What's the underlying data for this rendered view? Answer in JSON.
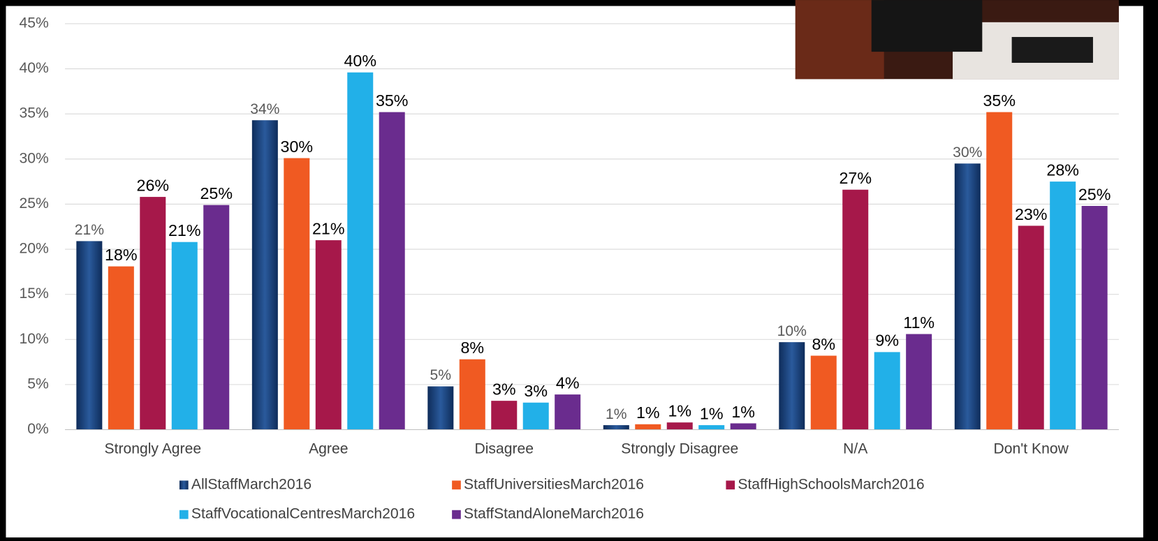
{
  "chart_data": {
    "type": "bar",
    "categories": [
      "Strongly Agree",
      "Agree",
      "Disagree",
      "Strongly Disagree",
      "N/A",
      "Don't Know"
    ],
    "series": [
      {
        "name": "AllStaffMarch2016",
        "color": "#1f4e8c",
        "values": [
          20.9,
          34.3,
          4.8,
          0.5,
          9.7,
          29.5
        ],
        "value_labels": [
          "21%",
          "34%",
          "5%",
          "1%",
          "10%",
          "30%"
        ]
      },
      {
        "name": "StaffUniversitiesMarch2016",
        "color": "#f05a22",
        "values": [
          18.1,
          30.1,
          7.8,
          0.6,
          8.2,
          35.2
        ],
        "value_labels": [
          "18%",
          "30%",
          "8%",
          "1%",
          "8%",
          "35%"
        ]
      },
      {
        "name": "StaffHighSchoolsMarch2016",
        "color": "#a6184a",
        "values": [
          25.8,
          21.0,
          3.2,
          0.8,
          26.6,
          22.6
        ],
        "value_labels": [
          "26%",
          "21%",
          "3%",
          "1%",
          "27%",
          "23%"
        ]
      },
      {
        "name": "StaffVocationalCentresMarch2016",
        "color": "#22b0e8",
        "values": [
          20.8,
          39.6,
          3.0,
          0.5,
          8.6,
          27.5
        ],
        "value_labels": [
          "21%",
          "40%",
          "3%",
          "1%",
          "9%",
          "28%"
        ]
      },
      {
        "name": "StaffStandAloneMarch2016",
        "color": "#6a2c8e",
        "values": [
          24.9,
          35.2,
          3.9,
          0.7,
          10.6,
          24.8
        ],
        "value_labels": [
          "25%",
          "35%",
          "4%",
          "1%",
          "11%",
          "25%"
        ]
      }
    ],
    "ylim": [
      0,
      45
    ],
    "yticks": [
      {
        "value": 0,
        "label": "0%"
      },
      {
        "value": 5,
        "label": "5%"
      },
      {
        "value": 10,
        "label": "10%"
      },
      {
        "value": 15,
        "label": "15%"
      },
      {
        "value": 20,
        "label": "20%"
      },
      {
        "value": 25,
        "label": "25%"
      },
      {
        "value": 30,
        "label": "30%"
      },
      {
        "value": 35,
        "label": "35%"
      },
      {
        "value": 40,
        "label": "40%"
      },
      {
        "value": 45,
        "label": "45%"
      }
    ],
    "grid": true,
    "legend": "bottom"
  }
}
